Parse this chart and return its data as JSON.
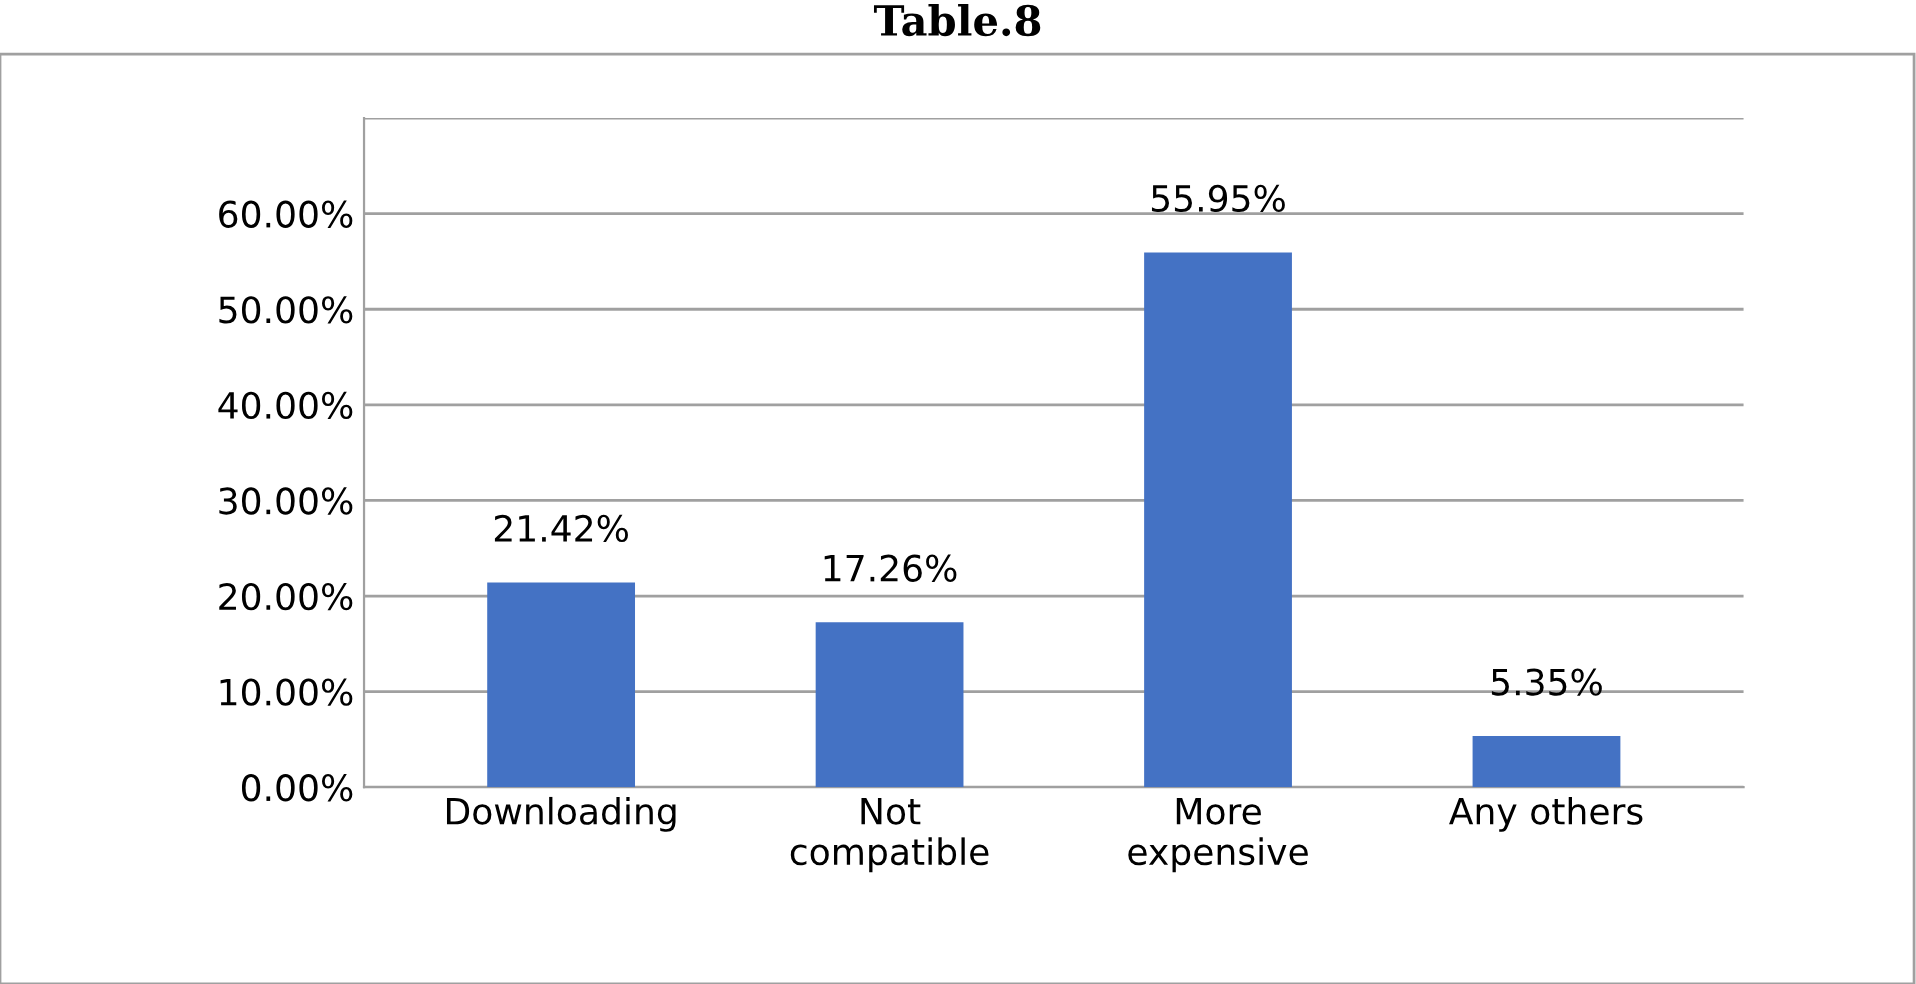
{
  "chart_data": {
    "type": "bar",
    "title": "Table.8",
    "categories": [
      "Downloading",
      "Not\ncompatible",
      "More\nexpensive",
      "Any others"
    ],
    "values": [
      21.42,
      17.26,
      55.95,
      5.35
    ],
    "value_labels": [
      "21.42%",
      "17.26%",
      "55.95%",
      "5.35%"
    ],
    "color": "#4472c4",
    "ylim": [
      0,
      70
    ],
    "yticks": [
      {
        "value": 0,
        "label": "0.00%"
      },
      {
        "value": 10,
        "label": "10.00%"
      },
      {
        "value": 20,
        "label": "20.00%"
      },
      {
        "value": 30,
        "label": "30.00%"
      },
      {
        "value": 40,
        "label": "40.00%"
      },
      {
        "value": 50,
        "label": "50.00%"
      },
      {
        "value": 60,
        "label": "60.00%"
      },
      {
        "value": 70,
        "label": null
      }
    ],
    "grid": "y",
    "legend": false
  }
}
